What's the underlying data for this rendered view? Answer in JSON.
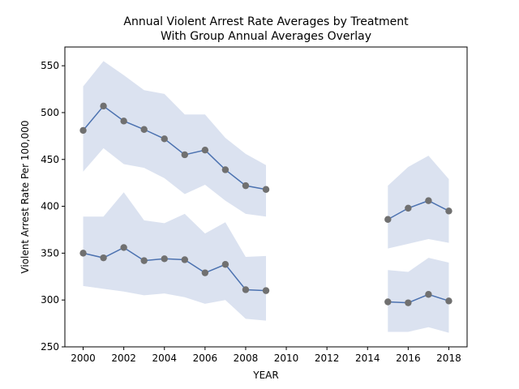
{
  "chart_data": {
    "type": "line",
    "title": "Annual Violent Arrest Rate Averages by Treatment",
    "subtitle": "With Group Annual Averages Overlay",
    "xlabel": "YEAR",
    "ylabel": "Violent Arrest Rate Per 100,000",
    "xlim": [
      1999.1,
      2018.9
    ],
    "ylim": [
      250,
      570
    ],
    "x_ticks": [
      2000,
      2002,
      2004,
      2006,
      2008,
      2010,
      2012,
      2014,
      2016,
      2018
    ],
    "y_ticks": [
      250,
      300,
      350,
      400,
      450,
      500,
      550
    ],
    "grid": false,
    "line_color": "#4c72b0",
    "band_color": "#dbe2f0",
    "point_color": "#707070",
    "series": [
      {
        "segments": [
          {
            "x": [
              2000,
              2001,
              2002,
              2003,
              2004,
              2005,
              2006,
              2007,
              2008,
              2009
            ],
            "y": [
              481,
              507,
              491,
              482,
              472,
              455,
              460,
              439,
              422,
              418
            ],
            "band_low": [
              437,
              462,
              445,
              441,
              430,
              413,
              423,
              406,
              392,
              389
            ],
            "band_high": [
              528,
              555,
              540,
              524,
              520,
              498,
              498,
              473,
              456,
              444
            ]
          },
          {
            "x": [
              2015,
              2016,
              2017,
              2018
            ],
            "y": [
              386,
              398,
              406,
              395
            ],
            "band_low": [
              355,
              360,
              365,
              361
            ],
            "band_high": [
              422,
              442,
              454,
              429
            ]
          }
        ]
      },
      {
        "segments": [
          {
            "x": [
              2000,
              2001,
              2002,
              2003,
              2004,
              2005,
              2006,
              2007,
              2008,
              2009
            ],
            "y": [
              350,
              345,
              356,
              342,
              344,
              343,
              329,
              338,
              311,
              310
            ],
            "band_low": [
              315,
              312,
              309,
              305,
              307,
              303,
              296,
              300,
              280,
              278
            ],
            "band_high": [
              389,
              389,
              415,
              385,
              382,
              392,
              371,
              383,
              346,
              347
            ]
          },
          {
            "x": [
              2015,
              2016,
              2017,
              2018
            ],
            "y": [
              298,
              297,
              306,
              299
            ],
            "band_low": [
              266,
              266,
              271,
              265
            ],
            "band_high": [
              332,
              330,
              345,
              340
            ]
          }
        ]
      }
    ]
  }
}
